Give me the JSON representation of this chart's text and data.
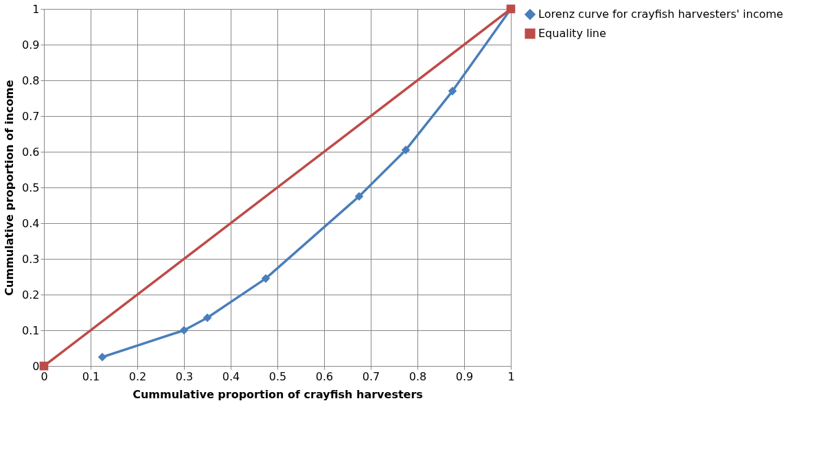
{
  "chart_data": {
    "type": "line",
    "xlabel": "Cummulative proportion of crayfish harvesters",
    "ylabel": "Cummulative proportion of income",
    "xlim": [
      0,
      1
    ],
    "ylim": [
      0,
      1
    ],
    "xticks": [
      0,
      0.1,
      0.2,
      0.3,
      0.4,
      0.5,
      0.6,
      0.7,
      0.8,
      0.9,
      1
    ],
    "yticks": [
      0,
      0.1,
      0.2,
      0.3,
      0.4,
      0.5,
      0.6,
      0.7,
      0.8,
      0.9,
      1
    ],
    "grid": true,
    "legend": "right",
    "line_style": "solid",
    "series": [
      {
        "name": "Lorenz curve for crayfish harvesters' income",
        "color": "#4a7ebb",
        "marker": "diamond",
        "x": [
          0.125,
          0.3,
          0.35,
          0.475,
          0.675,
          0.775,
          0.875,
          1
        ],
        "values": [
          0.025,
          0.1,
          0.135,
          0.245,
          0.475,
          0.605,
          0.77,
          1
        ]
      },
      {
        "name": "Equality line",
        "color": "#be4b48",
        "marker": "square",
        "x": [
          0,
          1
        ],
        "values": [
          0,
          1
        ]
      }
    ]
  }
}
